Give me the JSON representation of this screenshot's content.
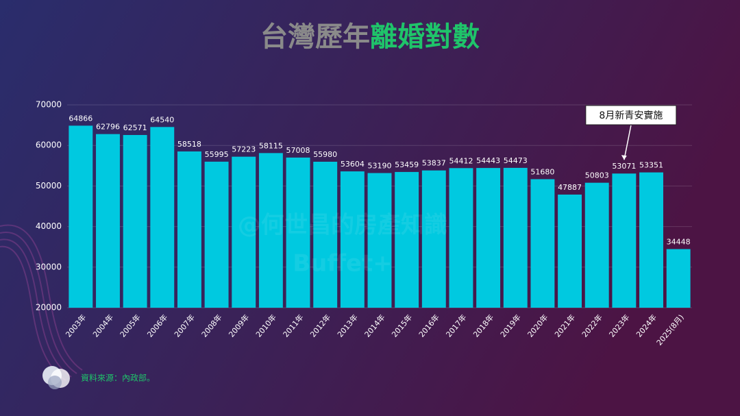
{
  "chart_data": {
    "type": "bar",
    "title": [
      "台灣歷年",
      "離婚對數"
    ],
    "categories": [
      "2003年",
      "2004年",
      "2005年",
      "2006年",
      "2007年",
      "2008年",
      "2009年",
      "2010年",
      "2011年",
      "2012年",
      "2013年",
      "2014年",
      "2015年",
      "2016年",
      "2017年",
      "2018年",
      "2019年",
      "2020年",
      "2021年",
      "2022年",
      "2023年",
      "2024年",
      "2025(8月)"
    ],
    "values": [
      64866,
      62796,
      62571,
      64540,
      58518,
      55995,
      57223,
      58115,
      57008,
      55980,
      53604,
      53190,
      53459,
      53837,
      54412,
      54443,
      54473,
      51680,
      47887,
      50803,
      53071,
      53351,
      34448
    ],
    "color": "#00c9e0",
    "ylim": [
      20000,
      70000
    ],
    "yticks": [
      20000,
      30000,
      40000,
      50000,
      60000,
      70000
    ],
    "grid": true,
    "annotation": {
      "text": "8月新青安實施",
      "category_index": 20
    },
    "watermark": [
      "@何世昌的房產知識",
      "Buffet+"
    ],
    "source": "資料來源：內政部。"
  }
}
